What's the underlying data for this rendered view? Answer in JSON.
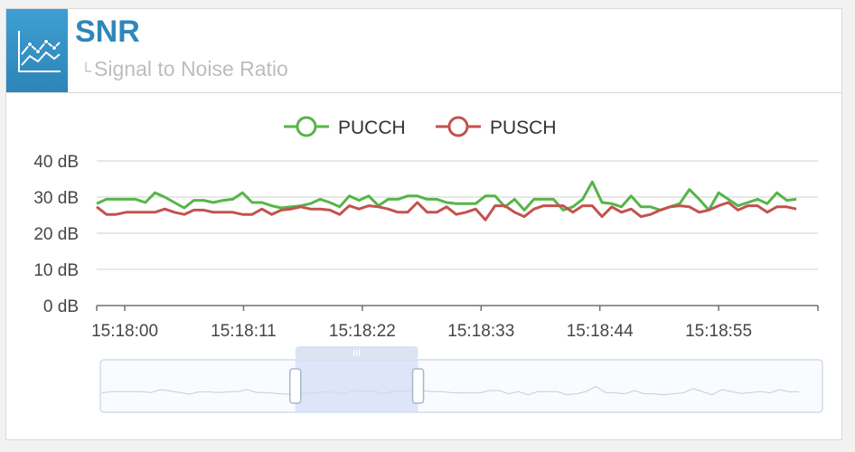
{
  "header": {
    "title": "SNR",
    "subtitle": "Signal to Noise Ratio",
    "icon": "line-chart-icon",
    "accent": "#2f86b9"
  },
  "chart_data": {
    "type": "line",
    "y_ticks": [
      "40 dB",
      "30 dB",
      "20 dB",
      "10 dB",
      "0 dB"
    ],
    "ylim": [
      0,
      40
    ],
    "x_ticks": [
      "15:18:00",
      "15:18:11",
      "15:18:22",
      "15:18:33",
      "15:18:44",
      "15:18:55"
    ],
    "x_tick_values": [
      0,
      11,
      22,
      33,
      44,
      55
    ],
    "xlim": [
      -2.6,
      64.2
    ],
    "grid": true,
    "legend_position": "top-center",
    "series": [
      {
        "name": "PUCCH",
        "color": "#56b548",
        "values": [
          [
            -2.6,
            28.2
          ],
          [
            -1.7,
            29.4
          ],
          [
            -0.8,
            29.4
          ],
          [
            0.1,
            29.4
          ],
          [
            1.0,
            29.4
          ],
          [
            1.9,
            28.5
          ],
          [
            2.8,
            31.2
          ],
          [
            3.7,
            30.0
          ],
          [
            4.6,
            28.5
          ],
          [
            5.5,
            27.0
          ],
          [
            6.4,
            29.1
          ],
          [
            7.3,
            29.1
          ],
          [
            8.2,
            28.5
          ],
          [
            9.1,
            29.1
          ],
          [
            10.0,
            29.4
          ],
          [
            10.9,
            31.2
          ],
          [
            11.8,
            28.5
          ],
          [
            12.7,
            28.5
          ],
          [
            13.6,
            27.6
          ],
          [
            14.5,
            27.0
          ],
          [
            15.4,
            27.3
          ],
          [
            16.3,
            27.6
          ],
          [
            17.2,
            28.2
          ],
          [
            18.1,
            29.4
          ],
          [
            19.0,
            28.5
          ],
          [
            19.9,
            27.3
          ],
          [
            20.8,
            30.3
          ],
          [
            21.7,
            29.1
          ],
          [
            22.6,
            30.3
          ],
          [
            23.5,
            27.6
          ],
          [
            24.4,
            29.4
          ],
          [
            25.3,
            29.4
          ],
          [
            26.2,
            30.3
          ],
          [
            27.1,
            30.3
          ],
          [
            28.0,
            29.4
          ],
          [
            28.9,
            29.4
          ],
          [
            29.8,
            28.5
          ],
          [
            30.7,
            28.2
          ],
          [
            31.6,
            28.2
          ],
          [
            32.5,
            28.2
          ],
          [
            33.4,
            30.3
          ],
          [
            34.3,
            30.3
          ],
          [
            35.2,
            27.3
          ],
          [
            36.1,
            29.4
          ],
          [
            37.0,
            26.4
          ],
          [
            37.9,
            29.4
          ],
          [
            38.8,
            29.4
          ],
          [
            39.7,
            29.4
          ],
          [
            40.6,
            26.4
          ],
          [
            41.5,
            27.3
          ],
          [
            42.4,
            29.4
          ],
          [
            43.3,
            34.2
          ],
          [
            44.2,
            28.5
          ],
          [
            45.1,
            28.2
          ],
          [
            46.0,
            27.3
          ],
          [
            46.9,
            30.3
          ],
          [
            47.8,
            27.3
          ],
          [
            48.7,
            27.3
          ],
          [
            49.6,
            26.4
          ],
          [
            50.5,
            27.3
          ],
          [
            51.4,
            28.2
          ],
          [
            52.3,
            32.1
          ],
          [
            53.2,
            29.4
          ],
          [
            54.1,
            26.4
          ],
          [
            55.0,
            31.2
          ],
          [
            55.9,
            29.4
          ],
          [
            56.8,
            27.6
          ],
          [
            57.7,
            28.5
          ],
          [
            58.6,
            29.4
          ],
          [
            59.5,
            28.2
          ],
          [
            60.4,
            31.2
          ],
          [
            61.3,
            29.1
          ],
          [
            62.2,
            29.4
          ]
        ]
      },
      {
        "name": "PUSCH",
        "color": "#c4524f",
        "values": [
          [
            -2.6,
            27.3
          ],
          [
            -1.7,
            25.2
          ],
          [
            -0.8,
            25.2
          ],
          [
            0.1,
            25.8
          ],
          [
            1.0,
            25.8
          ],
          [
            1.9,
            25.8
          ],
          [
            2.8,
            25.8
          ],
          [
            3.7,
            26.7
          ],
          [
            4.6,
            25.8
          ],
          [
            5.5,
            25.2
          ],
          [
            6.4,
            26.4
          ],
          [
            7.3,
            26.4
          ],
          [
            8.2,
            25.8
          ],
          [
            9.1,
            25.8
          ],
          [
            10.0,
            25.8
          ],
          [
            10.9,
            25.2
          ],
          [
            11.8,
            25.2
          ],
          [
            12.7,
            26.7
          ],
          [
            13.6,
            25.2
          ],
          [
            14.5,
            26.4
          ],
          [
            15.4,
            26.7
          ],
          [
            16.3,
            27.3
          ],
          [
            17.2,
            26.7
          ],
          [
            18.1,
            26.7
          ],
          [
            19.0,
            26.4
          ],
          [
            19.9,
            25.2
          ],
          [
            20.8,
            27.6
          ],
          [
            21.7,
            26.7
          ],
          [
            22.6,
            27.6
          ],
          [
            23.5,
            27.3
          ],
          [
            24.4,
            26.7
          ],
          [
            25.3,
            25.8
          ],
          [
            26.2,
            25.8
          ],
          [
            27.1,
            28.5
          ],
          [
            28.0,
            25.8
          ],
          [
            28.9,
            25.8
          ],
          [
            29.8,
            27.3
          ],
          [
            30.7,
            25.2
          ],
          [
            31.6,
            25.8
          ],
          [
            32.5,
            26.7
          ],
          [
            33.4,
            23.7
          ],
          [
            34.3,
            27.6
          ],
          [
            35.2,
            27.6
          ],
          [
            36.1,
            25.8
          ],
          [
            37.0,
            24.6
          ],
          [
            37.9,
            26.7
          ],
          [
            38.8,
            27.6
          ],
          [
            39.7,
            27.6
          ],
          [
            40.6,
            27.6
          ],
          [
            41.5,
            25.8
          ],
          [
            42.4,
            27.6
          ],
          [
            43.3,
            27.6
          ],
          [
            44.2,
            24.6
          ],
          [
            45.1,
            27.3
          ],
          [
            46.0,
            25.8
          ],
          [
            46.9,
            26.7
          ],
          [
            47.8,
            24.6
          ],
          [
            48.7,
            25.2
          ],
          [
            49.6,
            26.4
          ],
          [
            50.5,
            27.3
          ],
          [
            51.4,
            27.6
          ],
          [
            52.3,
            27.3
          ],
          [
            53.2,
            25.8
          ],
          [
            54.1,
            26.4
          ],
          [
            55.0,
            27.6
          ],
          [
            55.9,
            28.5
          ],
          [
            56.8,
            26.4
          ],
          [
            57.7,
            27.6
          ],
          [
            58.6,
            27.6
          ],
          [
            59.5,
            25.8
          ],
          [
            60.4,
            27.3
          ],
          [
            61.3,
            27.3
          ],
          [
            62.2,
            26.7
          ]
        ]
      }
    ],
    "zoom": {
      "start": 0.27,
      "end": 0.44
    }
  }
}
